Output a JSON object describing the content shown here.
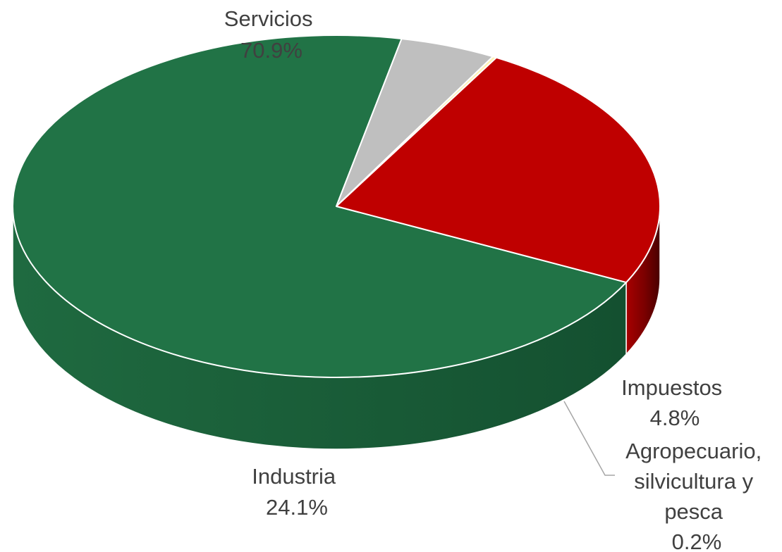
{
  "chart_data": {
    "type": "pie",
    "style": "3d",
    "title": "",
    "slices": [
      {
        "label": "Servicios",
        "value": 70.9,
        "value_label": "70.9%",
        "color": "#217346",
        "side_color": "#0d3a22"
      },
      {
        "label": "Impuestos",
        "value": 4.8,
        "value_label": "4.8%",
        "color": "#bfbfbf",
        "side_color": "#4d4d4d"
      },
      {
        "label": "Agropecuario, silvicultura y pesca",
        "value": 0.2,
        "value_label": "0.2%",
        "color": "#fff2b3",
        "side_color": "#8a8350"
      },
      {
        "label": "Industria",
        "value": 24.1,
        "value_label": "24.1%",
        "color": "#bf0000",
        "side_color": "#4a0000"
      }
    ],
    "label_lines": {
      "servicios": [
        "Servicios",
        "70.9%"
      ],
      "impuestos": [
        "Impuestos",
        "4.8%"
      ],
      "agro": [
        "Agropecuario,",
        "silvicultura y",
        "pesca",
        "0.2%"
      ],
      "industria": [
        "Industria",
        "24.1%"
      ]
    },
    "legend": "none"
  }
}
